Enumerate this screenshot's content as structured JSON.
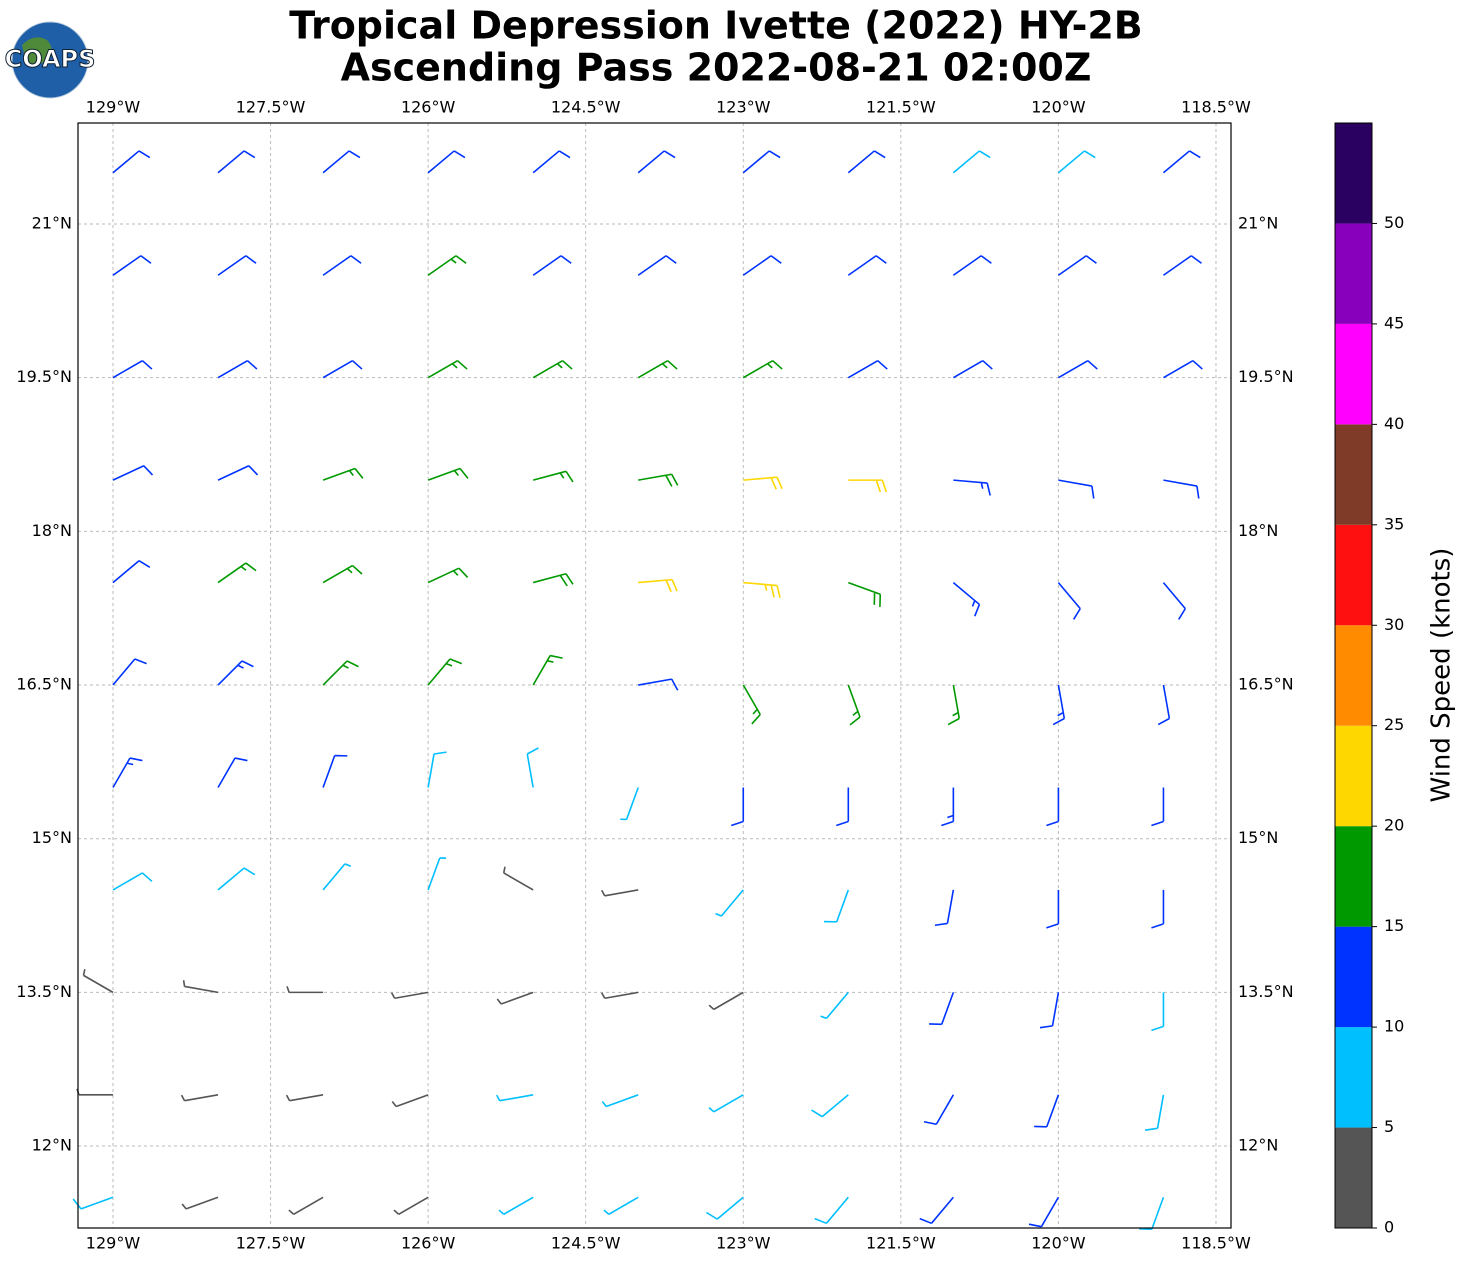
{
  "logo": {
    "text": "COAPS"
  },
  "title": [
    "Tropical Depression Ivette (2022) HY-2B",
    "Ascending Pass 2022-08-21 02:00Z"
  ],
  "map": {
    "xlim": [
      -129.333,
      -118.357
    ],
    "ylim": [
      11.2,
      21.986
    ],
    "xticks": [
      {
        "value": -129,
        "label": "129°W"
      },
      {
        "value": -127.5,
        "label": "127.5°W"
      },
      {
        "value": -126,
        "label": "126°W"
      },
      {
        "value": -124.5,
        "label": "124.5°W"
      },
      {
        "value": -123,
        "label": "123°W"
      },
      {
        "value": -121.5,
        "label": "121.5°W"
      },
      {
        "value": -120,
        "label": "120°W"
      },
      {
        "value": -118.5,
        "label": "118.5°W"
      }
    ],
    "yticks": [
      {
        "value": 12,
        "label": "12°N"
      },
      {
        "value": 13.5,
        "label": "13.5°N"
      },
      {
        "value": 15,
        "label": "15°N"
      },
      {
        "value": 16.5,
        "label": "16.5°N"
      },
      {
        "value": 18,
        "label": "18°N"
      },
      {
        "value": 19.5,
        "label": "19.5°N"
      },
      {
        "value": 21,
        "label": "21°N"
      }
    ],
    "grid": true,
    "wind": {
      "lons": [
        -129,
        -128,
        -127,
        -126,
        -125,
        -124,
        -123,
        -122,
        -121,
        -120,
        -119
      ],
      "lats": [
        21.5,
        20.5,
        19.5,
        18.5,
        17.5,
        16.5,
        15.5,
        14.5,
        13.5,
        12.5,
        11.5
      ],
      "speed": [
        [
          12,
          12,
          12,
          12,
          12,
          12,
          12,
          12,
          8,
          8,
          12
        ],
        [
          12,
          12,
          12,
          16,
          12,
          12,
          12,
          12,
          12,
          12,
          12
        ],
        [
          12,
          12,
          12,
          16,
          16,
          16,
          16,
          12,
          12,
          12,
          12
        ],
        [
          12,
          12,
          16,
          16,
          17,
          18,
          20,
          22,
          14,
          12,
          12
        ],
        [
          12,
          16,
          16,
          17,
          18,
          22,
          24,
          18,
          13,
          12,
          12
        ],
        [
          12,
          13,
          16,
          17,
          16,
          12,
          16,
          17,
          15,
          13,
          12
        ],
        [
          13,
          12,
          12,
          8,
          8,
          7,
          10,
          12,
          13,
          12,
          12
        ],
        [
          8,
          8,
          7,
          6,
          4,
          4,
          6,
          8,
          12,
          12,
          10
        ],
        [
          4,
          3,
          4,
          4,
          4,
          3,
          3,
          6,
          11,
          12,
          9
        ],
        [
          3,
          4,
          3,
          3,
          6,
          6,
          7,
          8,
          10,
          11,
          8
        ],
        [
          8,
          4,
          3,
          3,
          7,
          7,
          8,
          8,
          10,
          12,
          8
        ]
      ],
      "direction": [
        [
          50,
          50,
          50,
          50,
          50,
          50,
          50,
          50,
          50,
          50,
          50
        ],
        [
          55,
          55,
          55,
          55,
          55,
          55,
          55,
          55,
          55,
          55,
          55
        ],
        [
          60,
          60,
          60,
          60,
          60,
          60,
          60,
          60,
          60,
          60,
          60
        ],
        [
          65,
          65,
          70,
          70,
          75,
          80,
          85,
          90,
          95,
          100,
          100
        ],
        [
          50,
          55,
          60,
          65,
          75,
          85,
          95,
          110,
          130,
          140,
          140
        ],
        [
          40,
          45,
          45,
          40,
          30,
          80,
          150,
          160,
          170,
          170,
          170
        ],
        [
          30,
          30,
          20,
          10,
          350,
          200,
          180,
          180,
          180,
          180,
          180
        ],
        [
          60,
          50,
          40,
          20,
          300,
          260,
          220,
          200,
          190,
          180,
          180
        ],
        [
          300,
          280,
          270,
          260,
          250,
          260,
          240,
          220,
          200,
          190,
          180
        ],
        [
          270,
          260,
          260,
          250,
          260,
          250,
          240,
          230,
          210,
          200,
          190
        ],
        [
          250,
          250,
          240,
          240,
          240,
          240,
          230,
          220,
          220,
          210,
          200
        ]
      ]
    }
  },
  "colorbar": {
    "label": "Wind Speed (knots)",
    "ylim": [
      0,
      55
    ],
    "bounds": [
      0,
      5,
      10,
      15,
      20,
      25,
      30,
      35,
      40,
      45,
      50,
      55
    ],
    "colors": [
      "#555555",
      "#00bfff",
      "#0033ff",
      "#009900",
      "#ffd700",
      "#ff8c00",
      "#ff1010",
      "#803a28",
      "#ff00ff",
      "#8800bb",
      "#2a0060"
    ],
    "ticks": [
      0,
      5,
      10,
      15,
      20,
      25,
      30,
      35,
      40,
      45,
      50
    ]
  }
}
